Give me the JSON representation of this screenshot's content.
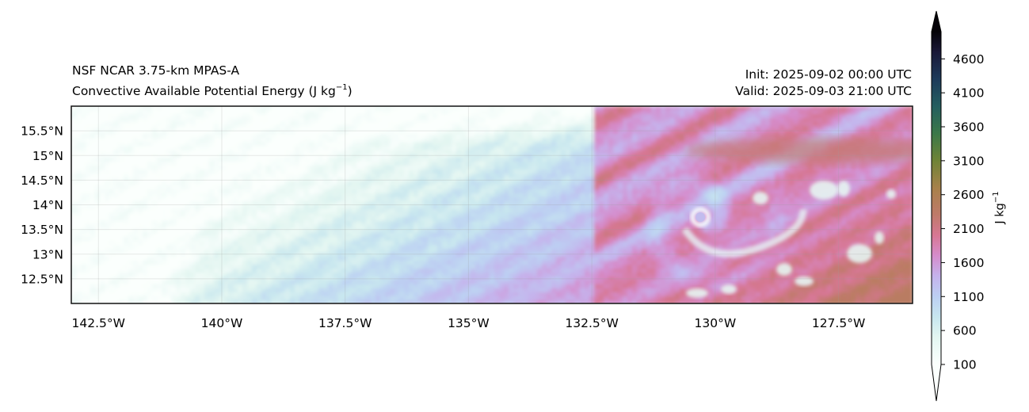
{
  "chart_data": {
    "type": "heatmap",
    "title_left_line1": "NSF NCAR 3.75-km MPAS-A",
    "title_left_line2": "Convective Available Potential Energy (J kg",
    "title_left_unit_exp": "−1",
    "title_left_close": ")",
    "title_right_line1": "Init: 2025-09-02 00:00 UTC",
    "title_right_line2": "Valid: 2025-09-03 21:00 UTC",
    "xlim": [
      -143.05,
      -126.0
    ],
    "ylim": [
      12.0,
      16.0
    ],
    "grid": true,
    "x_ticks": [
      {
        "value": -142.5,
        "label": "142.5°W"
      },
      {
        "value": -140.0,
        "label": "140°W"
      },
      {
        "value": -137.5,
        "label": "137.5°W"
      },
      {
        "value": -135.0,
        "label": "135°W"
      },
      {
        "value": -132.5,
        "label": "132.5°W"
      },
      {
        "value": -130.0,
        "label": "130°W"
      },
      {
        "value": -127.5,
        "label": "127.5°W"
      }
    ],
    "y_ticks": [
      {
        "value": 15.5,
        "label": "15.5°N"
      },
      {
        "value": 15.0,
        "label": "15°N"
      },
      {
        "value": 14.5,
        "label": "14.5°N"
      },
      {
        "value": 14.0,
        "label": "14°N"
      },
      {
        "value": 13.5,
        "label": "13.5°N"
      },
      {
        "value": 13.0,
        "label": "13°N"
      },
      {
        "value": 12.5,
        "label": "12.5°N"
      }
    ],
    "colorbar": {
      "label": "J kg",
      "label_exp": "−1",
      "range": [
        100,
        5000
      ],
      "extend": "both",
      "ticks": [
        100,
        600,
        1100,
        1600,
        2100,
        2600,
        3100,
        3600,
        4100,
        4600
      ],
      "tick_labels": [
        "100",
        "600",
        "1100",
        "1600",
        "2100",
        "2600",
        "3100",
        "3600",
        "4100",
        "4600"
      ],
      "colors": [
        {
          "value": 100,
          "color": "#fbfffd"
        },
        {
          "value": 500,
          "color": "#e3f6f1"
        },
        {
          "value": 800,
          "color": "#c7e6ef"
        },
        {
          "value": 1100,
          "color": "#bccff3"
        },
        {
          "value": 1400,
          "color": "#c5b3ec"
        },
        {
          "value": 1700,
          "color": "#d58ccc"
        },
        {
          "value": 2000,
          "color": "#d77794"
        },
        {
          "value": 2300,
          "color": "#bf7a6a"
        },
        {
          "value": 2700,
          "color": "#a7814a"
        },
        {
          "value": 3100,
          "color": "#6f8336"
        },
        {
          "value": 3500,
          "color": "#3b7848"
        },
        {
          "value": 3900,
          "color": "#245e5f"
        },
        {
          "value": 4300,
          "color": "#1d3a5a"
        },
        {
          "value": 4700,
          "color": "#1a1838"
        },
        {
          "value": 5000,
          "color": "#050308"
        }
      ]
    },
    "features": {
      "storm_center_lon": -130.3,
      "storm_center_lat": 13.75,
      "max_region_cape": 2300,
      "background_cape": 300
    }
  }
}
